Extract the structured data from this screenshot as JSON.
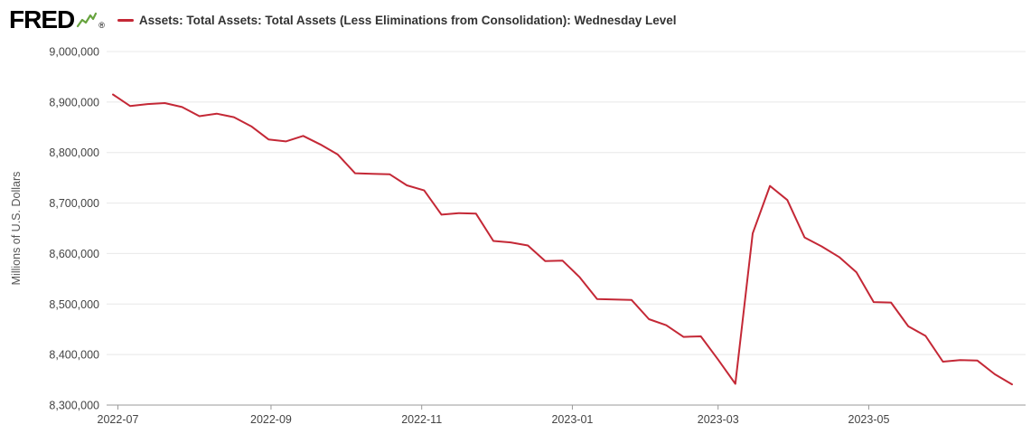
{
  "header": {
    "logo": "FRED",
    "registered": "®"
  },
  "legend": {
    "label": "Assets: Total Assets: Total Assets (Less Eliminations from Consolidation): Wednesday Level"
  },
  "colors": {
    "line": "#c42836",
    "grid": "#e8e8e8",
    "axis": "#999999",
    "tick_text": "#444444",
    "axis_label": "#555555",
    "logo_spark": "#67a33e"
  },
  "chart_data": {
    "type": "line",
    "title": "Assets: Total Assets: Total Assets (Less Eliminations from Consolidation): Wednesday Level",
    "xlabel": "",
    "ylabel": "Millions of U.S. Dollars",
    "ylim": [
      8300000,
      9000000
    ],
    "yticks": [
      8300000,
      8400000,
      8500000,
      8600000,
      8700000,
      8800000,
      8900000,
      9000000
    ],
    "xticks": [
      {
        "label": "2022-07",
        "date": "2022-07-01"
      },
      {
        "label": "2022-09",
        "date": "2022-09-01"
      },
      {
        "label": "2022-11",
        "date": "2022-11-01"
      },
      {
        "label": "2023-01",
        "date": "2023-01-01"
      },
      {
        "label": "2023-03",
        "date": "2023-03-01"
      },
      {
        "label": "2023-05",
        "date": "2023-05-01"
      }
    ],
    "grid": "horizontal",
    "legend_position": "top-left",
    "series": [
      {
        "name": "Assets: Total Assets: Total Assets (Less Eliminations from Consolidation): Wednesday Level",
        "points": [
          {
            "date": "2022-06-29",
            "value": 8915000
          },
          {
            "date": "2022-07-06",
            "value": 8892000
          },
          {
            "date": "2022-07-13",
            "value": 8896000
          },
          {
            "date": "2022-07-20",
            "value": 8898000
          },
          {
            "date": "2022-07-27",
            "value": 8890000
          },
          {
            "date": "2022-08-03",
            "value": 8872000
          },
          {
            "date": "2022-08-10",
            "value": 8877000
          },
          {
            "date": "2022-08-17",
            "value": 8870000
          },
          {
            "date": "2022-08-24",
            "value": 8852000
          },
          {
            "date": "2022-08-31",
            "value": 8826000
          },
          {
            "date": "2022-09-07",
            "value": 8822000
          },
          {
            "date": "2022-09-14",
            "value": 8833000
          },
          {
            "date": "2022-09-21",
            "value": 8816000
          },
          {
            "date": "2022-09-28",
            "value": 8796000
          },
          {
            "date": "2022-10-05",
            "value": 8759000
          },
          {
            "date": "2022-10-12",
            "value": 8758000
          },
          {
            "date": "2022-10-19",
            "value": 8757000
          },
          {
            "date": "2022-10-26",
            "value": 8735000
          },
          {
            "date": "2022-11-02",
            "value": 8725000
          },
          {
            "date": "2022-11-09",
            "value": 8677000
          },
          {
            "date": "2022-11-16",
            "value": 8680000
          },
          {
            "date": "2022-11-23",
            "value": 8679000
          },
          {
            "date": "2022-11-30",
            "value": 8625000
          },
          {
            "date": "2022-12-07",
            "value": 8622000
          },
          {
            "date": "2022-12-14",
            "value": 8616000
          },
          {
            "date": "2022-12-21",
            "value": 8585000
          },
          {
            "date": "2022-12-28",
            "value": 8586000
          },
          {
            "date": "2023-01-04",
            "value": 8553000
          },
          {
            "date": "2023-01-11",
            "value": 8510000
          },
          {
            "date": "2023-01-18",
            "value": 8509000
          },
          {
            "date": "2023-01-25",
            "value": 8508000
          },
          {
            "date": "2023-02-01",
            "value": 8470000
          },
          {
            "date": "2023-02-08",
            "value": 8458000
          },
          {
            "date": "2023-02-15",
            "value": 8435000
          },
          {
            "date": "2023-02-22",
            "value": 8436000
          },
          {
            "date": "2023-03-01",
            "value": 8390000
          },
          {
            "date": "2023-03-08",
            "value": 8342000
          },
          {
            "date": "2023-03-15",
            "value": 8640000
          },
          {
            "date": "2023-03-22",
            "value": 8734000
          },
          {
            "date": "2023-03-29",
            "value": 8706000
          },
          {
            "date": "2023-04-05",
            "value": 8632000
          },
          {
            "date": "2023-04-12",
            "value": 8614000
          },
          {
            "date": "2023-04-19",
            "value": 8593000
          },
          {
            "date": "2023-04-26",
            "value": 8563000
          },
          {
            "date": "2023-05-03",
            "value": 8504000
          },
          {
            "date": "2023-05-10",
            "value": 8503000
          },
          {
            "date": "2023-05-17",
            "value": 8456000
          },
          {
            "date": "2023-05-24",
            "value": 8437000
          },
          {
            "date": "2023-05-31",
            "value": 8386000
          },
          {
            "date": "2023-06-07",
            "value": 8389000
          },
          {
            "date": "2023-06-14",
            "value": 8388000
          },
          {
            "date": "2023-06-21",
            "value": 8361000
          },
          {
            "date": "2023-06-28",
            "value": 8341000
          }
        ]
      }
    ]
  }
}
